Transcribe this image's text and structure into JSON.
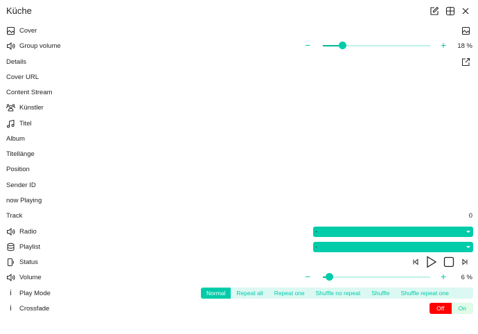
{
  "header": {
    "title": "Küche",
    "icons": [
      "edit-icon",
      "grid-icon",
      "close-icon"
    ]
  },
  "rows": {
    "cover": {
      "label": "Cover"
    },
    "group_volume": {
      "label": "Group volume",
      "value": "18 %",
      "level": 18
    },
    "details": {
      "label": "Details"
    },
    "cover_url": {
      "label": "Cover URL"
    },
    "content_stream": {
      "label": "Content Stream"
    },
    "artist": {
      "label": "Künstler"
    },
    "title": {
      "label": "Titel"
    },
    "album": {
      "label": "Album"
    },
    "duration": {
      "label": "Titellänge"
    },
    "position": {
      "label": "Position"
    },
    "station_id": {
      "label": "Sender ID"
    },
    "now_playing": {
      "label": "now Playing"
    },
    "track": {
      "label": "Track",
      "value": "0"
    },
    "radio": {
      "label": "Radio",
      "selected": "-"
    },
    "playlist": {
      "label": "Playlist",
      "selected": "-"
    },
    "status": {
      "label": "Status"
    },
    "volume": {
      "label": "Volume",
      "value": "6 %",
      "level": 6
    },
    "play_mode": {
      "label": "Play Mode",
      "options": [
        "Normal",
        "Repeat all",
        "Repeat one",
        "Shuffle no repeat",
        "Shuffle",
        "Shuffle repeat one"
      ],
      "selected": "Normal"
    },
    "crossfade": {
      "label": "Crossfade",
      "off": "Off",
      "on": "On",
      "state": "Off"
    }
  },
  "colors": {
    "accent": "#00ccaa",
    "off": "#ff0000",
    "on_bg": "#e0fbe8"
  }
}
